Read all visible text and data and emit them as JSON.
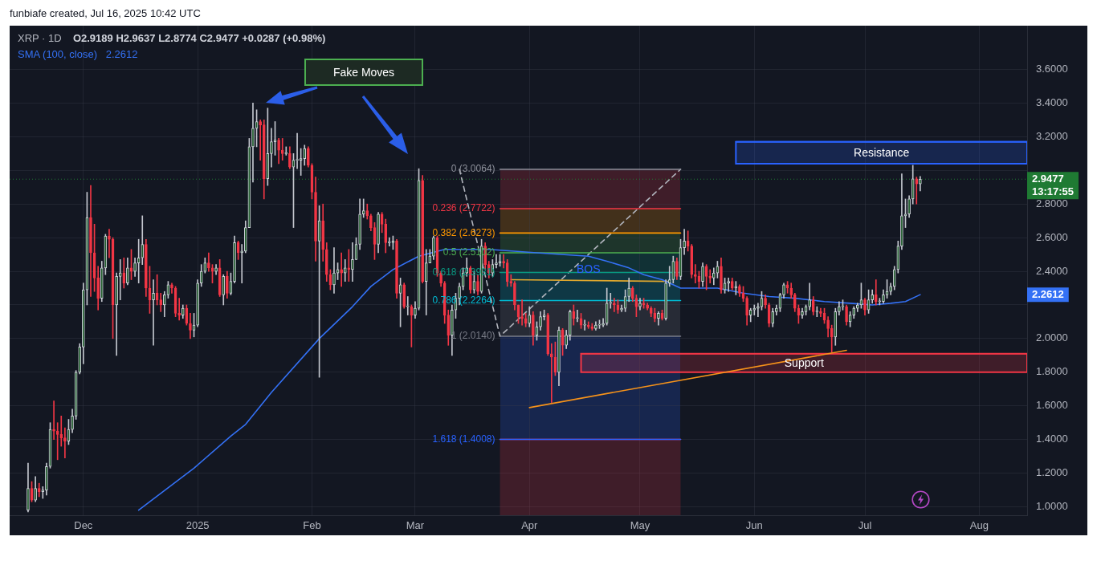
{
  "chart_data": {
    "type": "candlestick",
    "title": "XRP · 1D",
    "subtitle": "O2.9189 H2.9637 L2.8774 C2.9477 +0.0287 (+0.98%)",
    "annotations": [
      "funbiafe created, Jul 16, 2025 10:42 UTC",
      "Fake Moves",
      "13:17:55",
      "2.2612",
      "2.2612",
      {
        "text": "BOS",
        "x": "2025-04-17",
        "y": 2.41
      }
    ],
    "x": [
      "2024-11-16",
      "2024-11-17",
      "2024-11-18",
      "2024-11-19",
      "2024-11-20",
      "2024-11-21",
      "2024-11-22",
      "2024-11-23",
      "2024-11-24",
      "2024-11-25",
      "2024-11-26",
      "2024-11-27",
      "2024-11-28",
      "2024-11-29",
      "2024-11-30",
      "2024-12-01",
      "2024-12-02",
      "2024-12-03",
      "2024-12-04",
      "2024-12-05",
      "2024-12-06",
      "2024-12-07",
      "2024-12-08",
      "2024-12-09",
      "2024-12-10",
      "2024-12-11",
      "2024-12-12",
      "2024-12-13",
      "2024-12-14",
      "2024-12-15",
      "2024-12-16",
      "2024-12-17",
      "2024-12-18",
      "2024-12-19",
      "2024-12-20",
      "2024-12-21",
      "2024-12-22",
      "2024-12-23",
      "2024-12-24",
      "2024-12-25",
      "2024-12-26",
      "2024-12-27",
      "2024-12-28",
      "2024-12-29",
      "2024-12-30",
      "2024-12-31",
      "2025-01-01",
      "2025-01-02",
      "2025-01-03",
      "2025-01-04",
      "2025-01-05",
      "2025-01-06",
      "2025-01-07",
      "2025-01-08",
      "2025-01-09",
      "2025-01-10",
      "2025-01-11",
      "2025-01-12",
      "2025-01-13",
      "2025-01-14",
      "2025-01-15",
      "2025-01-16",
      "2025-01-17",
      "2025-01-18",
      "2025-01-19",
      "2025-01-20",
      "2025-01-21",
      "2025-01-22",
      "2025-01-23",
      "2025-01-24",
      "2025-01-25",
      "2025-01-26",
      "2025-01-27",
      "2025-01-28",
      "2025-01-29",
      "2025-01-30",
      "2025-01-31",
      "2025-02-01",
      "2025-02-02",
      "2025-02-03",
      "2025-02-04",
      "2025-02-05",
      "2025-02-06",
      "2025-02-07",
      "2025-02-08",
      "2025-02-09",
      "2025-02-10",
      "2025-02-11",
      "2025-02-12",
      "2025-02-13",
      "2025-02-14",
      "2025-02-15",
      "2025-02-16",
      "2025-02-17",
      "2025-02-18",
      "2025-02-19",
      "2025-02-20",
      "2025-02-21",
      "2025-02-22",
      "2025-02-23",
      "2025-02-24",
      "2025-02-25",
      "2025-02-26",
      "2025-02-27",
      "2025-02-28",
      "2025-03-01",
      "2025-03-02",
      "2025-03-03",
      "2025-03-04",
      "2025-03-05",
      "2025-03-06",
      "2025-03-07",
      "2025-03-08",
      "2025-03-09",
      "2025-03-10",
      "2025-03-11",
      "2025-03-12",
      "2025-03-13",
      "2025-03-14",
      "2025-03-15",
      "2025-03-16",
      "2025-03-17",
      "2025-03-18",
      "2025-03-19",
      "2025-03-20",
      "2025-03-21",
      "2025-03-22",
      "2025-03-23",
      "2025-03-24",
      "2025-03-25",
      "2025-03-26",
      "2025-03-27",
      "2025-03-28",
      "2025-03-29",
      "2025-03-30",
      "2025-03-31",
      "2025-04-01",
      "2025-04-02",
      "2025-04-03",
      "2025-04-04",
      "2025-04-05",
      "2025-04-06",
      "2025-04-07",
      "2025-04-08",
      "2025-04-09",
      "2025-04-10",
      "2025-04-11",
      "2025-04-12",
      "2025-04-13",
      "2025-04-14",
      "2025-04-15",
      "2025-04-16",
      "2025-04-17",
      "2025-04-18",
      "2025-04-19",
      "2025-04-20",
      "2025-04-21",
      "2025-04-22",
      "2025-04-23",
      "2025-04-24",
      "2025-04-25",
      "2025-04-26",
      "2025-04-27",
      "2025-04-28",
      "2025-04-29",
      "2025-04-30",
      "2025-05-01",
      "2025-05-02",
      "2025-05-03",
      "2025-05-04",
      "2025-05-05",
      "2025-05-06",
      "2025-05-07",
      "2025-05-08",
      "2025-05-09",
      "2025-05-10",
      "2025-05-11",
      "2025-05-12",
      "2025-05-13",
      "2025-05-14",
      "2025-05-15",
      "2025-05-16",
      "2025-05-17",
      "2025-05-18",
      "2025-05-19",
      "2025-05-20",
      "2025-05-21",
      "2025-05-22",
      "2025-05-23",
      "2025-05-24",
      "2025-05-25",
      "2025-05-26",
      "2025-05-27",
      "2025-05-28",
      "2025-05-29",
      "2025-05-30",
      "2025-05-31",
      "2025-06-01",
      "2025-06-02",
      "2025-06-03",
      "2025-06-04",
      "2025-06-05",
      "2025-06-06",
      "2025-06-07",
      "2025-06-08",
      "2025-06-09",
      "2025-06-10",
      "2025-06-11",
      "2025-06-12",
      "2025-06-13",
      "2025-06-14",
      "2025-06-15",
      "2025-06-16",
      "2025-06-17",
      "2025-06-18",
      "2025-06-19",
      "2025-06-20",
      "2025-06-21",
      "2025-06-22",
      "2025-06-23",
      "2025-06-24",
      "2025-06-25",
      "2025-06-26",
      "2025-06-27",
      "2025-06-28",
      "2025-06-29",
      "2025-06-30",
      "2025-07-01",
      "2025-07-02",
      "2025-07-03",
      "2025-07-04",
      "2025-07-05",
      "2025-07-06",
      "2025-07-07",
      "2025-07-08",
      "2025-07-09",
      "2025-07-10",
      "2025-07-11",
      "2025-07-12",
      "2025-07-13",
      "2025-07-14",
      "2025-07-15",
      "2025-07-16"
    ],
    "ohlc": [
      [
        0.98,
        1.26,
        0.97,
        1.11
      ],
      [
        1.11,
        1.15,
        1.03,
        1.04
      ],
      [
        1.04,
        1.18,
        1.03,
        1.11
      ],
      [
        1.11,
        1.14,
        1.06,
        1.09
      ],
      [
        1.09,
        1.12,
        1.05,
        1.1
      ],
      [
        1.1,
        1.26,
        1.07,
        1.24
      ],
      [
        1.24,
        1.5,
        1.23,
        1.46
      ],
      [
        1.46,
        1.63,
        1.4,
        1.45
      ],
      [
        1.45,
        1.5,
        1.28,
        1.43
      ],
      [
        1.43,
        1.54,
        1.36,
        1.41
      ],
      [
        1.41,
        1.47,
        1.29,
        1.39
      ],
      [
        1.39,
        1.52,
        1.37,
        1.46
      ],
      [
        1.46,
        1.58,
        1.44,
        1.54
      ],
      [
        1.54,
        1.81,
        1.52,
        1.8
      ],
      [
        1.8,
        1.97,
        1.79,
        1.95
      ],
      [
        1.95,
        2.33,
        1.85,
        2.29
      ],
      [
        2.29,
        2.87,
        2.2,
        2.72
      ],
      [
        2.72,
        2.91,
        2.25,
        2.51
      ],
      [
        2.51,
        2.68,
        2.28,
        2.36
      ],
      [
        2.36,
        2.43,
        2.17,
        2.24
      ],
      [
        2.24,
        2.46,
        2.22,
        2.42
      ],
      [
        2.42,
        2.62,
        2.38,
        2.61
      ],
      [
        2.61,
        2.65,
        2.48,
        2.59
      ],
      [
        2.59,
        2.6,
        2.0,
        2.2
      ],
      [
        2.2,
        2.39,
        1.9,
        2.37
      ],
      [
        2.37,
        2.47,
        2.23,
        2.39
      ],
      [
        2.39,
        2.48,
        2.3,
        2.33
      ],
      [
        2.33,
        2.48,
        2.32,
        2.42
      ],
      [
        2.42,
        2.53,
        2.35,
        2.4
      ],
      [
        2.4,
        2.48,
        2.37,
        2.45
      ],
      [
        2.45,
        2.59,
        2.33,
        2.48
      ],
      [
        2.48,
        2.73,
        2.44,
        2.56
      ],
      [
        2.56,
        2.59,
        2.25,
        2.3
      ],
      [
        2.3,
        2.43,
        2.15,
        2.23
      ],
      [
        2.23,
        2.35,
        1.96,
        2.27
      ],
      [
        2.27,
        2.38,
        2.2,
        2.23
      ],
      [
        2.23,
        2.27,
        2.16,
        2.2
      ],
      [
        2.2,
        2.28,
        2.13,
        2.26
      ],
      [
        2.26,
        2.34,
        2.24,
        2.32
      ],
      [
        2.32,
        2.33,
        2.27,
        2.3
      ],
      [
        2.3,
        2.31,
        2.13,
        2.15
      ],
      [
        2.15,
        2.24,
        2.11,
        2.14
      ],
      [
        2.14,
        2.2,
        2.12,
        2.18
      ],
      [
        2.18,
        2.2,
        2.08,
        2.09
      ],
      [
        2.09,
        2.15,
        2.0,
        2.05
      ],
      [
        2.05,
        2.15,
        2.01,
        2.08
      ],
      [
        2.08,
        2.35,
        2.07,
        2.33
      ],
      [
        2.33,
        2.44,
        2.31,
        2.4
      ],
      [
        2.4,
        2.48,
        2.39,
        2.45
      ],
      [
        2.45,
        2.51,
        2.4,
        2.42
      ],
      [
        2.42,
        2.44,
        2.33,
        2.4
      ],
      [
        2.4,
        2.44,
        2.38,
        2.42
      ],
      [
        2.42,
        2.47,
        2.25,
        2.26
      ],
      [
        2.26,
        2.38,
        2.2,
        2.37
      ],
      [
        2.37,
        2.4,
        2.24,
        2.27
      ],
      [
        2.27,
        2.39,
        2.26,
        2.34
      ],
      [
        2.34,
        2.61,
        2.33,
        2.57
      ],
      [
        2.57,
        2.58,
        2.47,
        2.51
      ],
      [
        2.51,
        2.56,
        2.33,
        2.52
      ],
      [
        2.52,
        2.7,
        2.51,
        2.66
      ],
      [
        2.66,
        3.19,
        2.66,
        3.14
      ],
      [
        3.14,
        3.4,
        2.93,
        3.25
      ],
      [
        3.25,
        3.36,
        3.14,
        3.29
      ],
      [
        3.29,
        3.3,
        3.06,
        3.27
      ],
      [
        3.27,
        3.3,
        2.83,
        2.95
      ],
      [
        2.95,
        3.37,
        2.91,
        3.1
      ],
      [
        3.1,
        3.25,
        3.02,
        3.17
      ],
      [
        3.17,
        3.29,
        3.09,
        3.18
      ],
      [
        3.18,
        3.19,
        3.04,
        3.12
      ],
      [
        3.12,
        3.19,
        3.06,
        3.1
      ],
      [
        3.1,
        3.14,
        3.09,
        3.1
      ],
      [
        3.1,
        3.14,
        3.01,
        3.02
      ],
      [
        3.02,
        3.1,
        2.66,
        3.06
      ],
      [
        3.06,
        3.22,
        3.01,
        3.06
      ],
      [
        3.06,
        3.13,
        2.97,
        3.07
      ],
      [
        3.07,
        3.15,
        3.03,
        3.13
      ],
      [
        3.13,
        3.14,
        3.02,
        3.03
      ],
      [
        3.03,
        3.04,
        2.83,
        2.87
      ],
      [
        2.87,
        2.96,
        2.46,
        2.58
      ],
      [
        2.58,
        2.79,
        1.77,
        2.7
      ],
      [
        2.7,
        2.8,
        2.46,
        2.53
      ],
      [
        2.53,
        2.57,
        2.34,
        2.38
      ],
      [
        2.38,
        2.41,
        2.29,
        2.32
      ],
      [
        2.32,
        2.54,
        2.27,
        2.39
      ],
      [
        2.39,
        2.45,
        2.35,
        2.41
      ],
      [
        2.41,
        2.51,
        2.31,
        2.39
      ],
      [
        2.39,
        2.47,
        2.34,
        2.42
      ],
      [
        2.42,
        2.53,
        2.34,
        2.41
      ],
      [
        2.41,
        2.57,
        2.34,
        2.47
      ],
      [
        2.47,
        2.6,
        2.47,
        2.56
      ],
      [
        2.56,
        2.83,
        2.53,
        2.74
      ],
      [
        2.74,
        2.83,
        2.72,
        2.76
      ],
      [
        2.76,
        2.8,
        2.71,
        2.73
      ],
      [
        2.73,
        2.74,
        2.64,
        2.66
      ],
      [
        2.66,
        2.69,
        2.47,
        2.56
      ],
      [
        2.56,
        2.75,
        2.51,
        2.74
      ],
      [
        2.74,
        2.75,
        2.63,
        2.68
      ],
      [
        2.68,
        2.71,
        2.51,
        2.57
      ],
      [
        2.57,
        2.6,
        2.55,
        2.57
      ],
      [
        2.57,
        2.61,
        2.53,
        2.58
      ],
      [
        2.58,
        2.59,
        2.24,
        2.27
      ],
      [
        2.27,
        2.36,
        2.07,
        2.32
      ],
      [
        2.32,
        2.33,
        2.18,
        2.19
      ],
      [
        2.19,
        2.25,
        2.14,
        2.19
      ],
      [
        2.19,
        2.2,
        1.95,
        2.14
      ],
      [
        2.14,
        2.22,
        2.12,
        2.18
      ],
      [
        2.18,
        3.01,
        2.17,
        2.94
      ],
      [
        2.94,
        2.97,
        2.33,
        2.34
      ],
      [
        2.34,
        2.53,
        2.14,
        2.45
      ],
      [
        2.45,
        2.53,
        2.45,
        2.49
      ],
      [
        2.49,
        2.61,
        2.47,
        2.6
      ],
      [
        2.6,
        2.61,
        2.37,
        2.39
      ],
      [
        2.39,
        2.4,
        2.31,
        2.33
      ],
      [
        2.33,
        2.34,
        2.09,
        2.14
      ],
      [
        2.14,
        2.17,
        1.96,
        2.02
      ],
      [
        2.02,
        2.2,
        1.9,
        2.17
      ],
      [
        2.17,
        2.27,
        2.12,
        2.24
      ],
      [
        2.24,
        2.33,
        2.2,
        2.31
      ],
      [
        2.31,
        2.42,
        2.29,
        2.39
      ],
      [
        2.39,
        2.48,
        2.37,
        2.42
      ],
      [
        2.42,
        2.43,
        2.27,
        2.29
      ],
      [
        2.29,
        2.4,
        2.27,
        2.34
      ],
      [
        2.34,
        2.38,
        2.26,
        2.28
      ],
      [
        2.28,
        2.59,
        2.27,
        2.55
      ],
      [
        2.55,
        2.57,
        2.41,
        2.44
      ],
      [
        2.44,
        2.46,
        2.36,
        2.39
      ],
      [
        2.39,
        2.47,
        2.37,
        2.44
      ],
      [
        2.44,
        2.5,
        2.42,
        2.45
      ],
      [
        2.45,
        2.5,
        2.43,
        2.46
      ],
      [
        2.46,
        2.5,
        2.42,
        2.45
      ],
      [
        2.45,
        2.47,
        2.31,
        2.34
      ],
      [
        2.34,
        2.38,
        2.31,
        2.33
      ],
      [
        2.33,
        2.34,
        2.17,
        2.2
      ],
      [
        2.2,
        2.2,
        2.09,
        2.13
      ],
      [
        2.13,
        2.23,
        2.08,
        2.12
      ],
      [
        2.12,
        2.15,
        2.07,
        2.09
      ],
      [
        2.09,
        2.19,
        2.07,
        2.14
      ],
      [
        2.14,
        2.16,
        1.96,
        2.02
      ],
      [
        2.02,
        2.1,
        1.99,
        2.07
      ],
      [
        2.07,
        2.16,
        2.05,
        2.13
      ],
      [
        2.13,
        2.17,
        2.11,
        2.14
      ],
      [
        2.14,
        2.15,
        1.9,
        1.91
      ],
      [
        1.91,
        1.97,
        1.62,
        1.89
      ],
      [
        1.89,
        1.98,
        1.78,
        1.8
      ],
      [
        1.8,
        2.07,
        1.72,
        2.05
      ],
      [
        2.05,
        2.06,
        1.9,
        1.96
      ],
      [
        1.96,
        2.05,
        1.94,
        2.02
      ],
      [
        2.02,
        2.17,
        1.99,
        2.16
      ],
      [
        2.16,
        2.2,
        2.08,
        2.12
      ],
      [
        2.12,
        2.17,
        2.1,
        2.12
      ],
      [
        2.12,
        2.15,
        2.06,
        2.08
      ],
      [
        2.08,
        2.11,
        2.05,
        2.08
      ],
      [
        2.08,
        2.1,
        2.06,
        2.07
      ],
      [
        2.07,
        2.09,
        2.05,
        2.06
      ],
      [
        2.06,
        2.1,
        2.05,
        2.08
      ],
      [
        2.08,
        2.11,
        2.06,
        2.08
      ],
      [
        2.08,
        2.12,
        2.07,
        2.09
      ],
      [
        2.09,
        2.3,
        2.08,
        2.21
      ],
      [
        2.21,
        2.27,
        2.18,
        2.21
      ],
      [
        2.21,
        2.24,
        2.16,
        2.2
      ],
      [
        2.2,
        2.23,
        2.15,
        2.17
      ],
      [
        2.17,
        2.2,
        2.16,
        2.18
      ],
      [
        2.18,
        2.29,
        2.16,
        2.25
      ],
      [
        2.25,
        2.36,
        2.22,
        2.3
      ],
      [
        2.3,
        2.31,
        2.22,
        2.24
      ],
      [
        2.24,
        2.26,
        2.13,
        2.19
      ],
      [
        2.19,
        2.24,
        2.17,
        2.21
      ],
      [
        2.21,
        2.24,
        2.18,
        2.2
      ],
      [
        2.2,
        2.21,
        2.17,
        2.18
      ],
      [
        2.18,
        2.19,
        2.13,
        2.15
      ],
      [
        2.15,
        2.18,
        2.1,
        2.12
      ],
      [
        2.12,
        2.16,
        2.08,
        2.15
      ],
      [
        2.15,
        2.17,
        2.11,
        2.12
      ],
      [
        2.12,
        2.35,
        2.11,
        2.33
      ],
      [
        2.33,
        2.43,
        2.31,
        2.35
      ],
      [
        2.35,
        2.49,
        2.33,
        2.46
      ],
      [
        2.46,
        2.48,
        2.35,
        2.37
      ],
      [
        2.37,
        2.59,
        2.35,
        2.54
      ],
      [
        2.54,
        2.65,
        2.5,
        2.58
      ],
      [
        2.58,
        2.64,
        2.52,
        2.55
      ],
      [
        2.55,
        2.56,
        2.36,
        2.38
      ],
      [
        2.38,
        2.44,
        2.33,
        2.37
      ],
      [
        2.37,
        2.4,
        2.3,
        2.34
      ],
      [
        2.34,
        2.45,
        2.31,
        2.43
      ],
      [
        2.43,
        2.44,
        2.29,
        2.37
      ],
      [
        2.37,
        2.41,
        2.33,
        2.36
      ],
      [
        2.36,
        2.42,
        2.32,
        2.39
      ],
      [
        2.39,
        2.46,
        2.36,
        2.43
      ],
      [
        2.43,
        2.48,
        2.27,
        2.29
      ],
      [
        2.29,
        2.36,
        2.27,
        2.33
      ],
      [
        2.33,
        2.36,
        2.28,
        2.34
      ],
      [
        2.34,
        2.36,
        2.29,
        2.3
      ],
      [
        2.3,
        2.34,
        2.26,
        2.31
      ],
      [
        2.31,
        2.32,
        2.25,
        2.27
      ],
      [
        2.27,
        2.31,
        2.22,
        2.24
      ],
      [
        2.24,
        2.25,
        2.08,
        2.14
      ],
      [
        2.14,
        2.18,
        2.1,
        2.17
      ],
      [
        2.17,
        2.2,
        2.14,
        2.18
      ],
      [
        2.18,
        2.21,
        2.13,
        2.19
      ],
      [
        2.19,
        2.28,
        2.17,
        2.24
      ],
      [
        2.24,
        2.26,
        2.18,
        2.2
      ],
      [
        2.2,
        2.21,
        2.07,
        2.09
      ],
      [
        2.09,
        2.18,
        2.07,
        2.16
      ],
      [
        2.16,
        2.2,
        2.14,
        2.18
      ],
      [
        2.18,
        2.27,
        2.16,
        2.26
      ],
      [
        2.26,
        2.33,
        2.24,
        2.32
      ],
      [
        2.32,
        2.34,
        2.27,
        2.3
      ],
      [
        2.3,
        2.33,
        2.24,
        2.26
      ],
      [
        2.26,
        2.27,
        2.16,
        2.18
      ],
      [
        2.18,
        2.2,
        2.09,
        2.14
      ],
      [
        2.14,
        2.18,
        2.12,
        2.16
      ],
      [
        2.16,
        2.2,
        2.14,
        2.19
      ],
      [
        2.19,
        2.33,
        2.17,
        2.23
      ],
      [
        2.23,
        2.25,
        2.14,
        2.16
      ],
      [
        2.16,
        2.19,
        2.13,
        2.16
      ],
      [
        2.16,
        2.18,
        2.13,
        2.15
      ],
      [
        2.15,
        2.18,
        2.09,
        2.11
      ],
      [
        2.11,
        2.13,
        2.01,
        2.06
      ],
      [
        2.06,
        2.08,
        1.92,
        2.01
      ],
      [
        2.01,
        2.18,
        1.96,
        2.16
      ],
      [
        2.16,
        2.22,
        2.14,
        2.19
      ],
      [
        2.19,
        2.23,
        2.17,
        2.19
      ],
      [
        2.19,
        2.2,
        2.08,
        2.1
      ],
      [
        2.1,
        2.16,
        2.07,
        2.14
      ],
      [
        2.14,
        2.19,
        2.12,
        2.18
      ],
      [
        2.18,
        2.21,
        2.16,
        2.2
      ],
      [
        2.2,
        2.33,
        2.18,
        2.23
      ],
      [
        2.23,
        2.24,
        2.14,
        2.17
      ],
      [
        2.17,
        2.29,
        2.15,
        2.23
      ],
      [
        2.23,
        2.29,
        2.21,
        2.26
      ],
      [
        2.26,
        2.35,
        2.2,
        2.22
      ],
      [
        2.22,
        2.24,
        2.2,
        2.22
      ],
      [
        2.22,
        2.29,
        2.21,
        2.26
      ],
      [
        2.26,
        2.35,
        2.24,
        2.28
      ],
      [
        2.28,
        2.33,
        2.26,
        2.31
      ],
      [
        2.31,
        2.43,
        2.29,
        2.41
      ],
      [
        2.41,
        2.58,
        2.39,
        2.55
      ],
      [
        2.55,
        2.98,
        2.53,
        2.73
      ],
      [
        2.73,
        2.83,
        2.66,
        2.74
      ],
      [
        2.74,
        2.85,
        2.72,
        2.83
      ],
      [
        2.83,
        3.03,
        2.8,
        2.95
      ],
      [
        2.95,
        2.96,
        2.8,
        2.9189
      ],
      [
        2.9189,
        2.9637,
        2.8774,
        2.9477
      ]
    ],
    "xlim": [
      "2024-11-11",
      "2025-08-14"
    ],
    "xticks": [
      {
        "value": "2024-12-01",
        "label": "Dec"
      },
      {
        "value": "2025-01-01",
        "label": "2025"
      },
      {
        "value": "2025-02-01",
        "label": "Feb"
      },
      {
        "value": "2025-03-01",
        "label": "Mar"
      },
      {
        "value": "2025-04-01",
        "label": "Apr"
      },
      {
        "value": "2025-05-01",
        "label": "May"
      },
      {
        "value": "2025-06-01",
        "label": "Jun"
      },
      {
        "value": "2025-07-01",
        "label": "Jul"
      },
      {
        "value": "2025-08-01",
        "label": "Aug"
      }
    ],
    "ylim": [
      0.95,
      3.86
    ],
    "yticks": [
      {
        "value": 1,
        "label": "1.0000"
      },
      {
        "value": 1.2,
        "label": "1.2000"
      },
      {
        "value": 1.4,
        "label": "1.4000"
      },
      {
        "value": 1.6,
        "label": "1.6000"
      },
      {
        "value": 1.8,
        "label": "1.8000"
      },
      {
        "value": 2,
        "label": "2.0000"
      },
      {
        "value": 2.2,
        "label": null
      },
      {
        "value": 2.4,
        "label": "2.4000"
      },
      {
        "value": 2.6,
        "label": "2.6000"
      },
      {
        "value": 2.8,
        "label": "2.8000"
      },
      {
        "value": 3,
        "label": null
      },
      {
        "value": 3.2,
        "label": "3.2000"
      },
      {
        "value": 3.4,
        "label": "3.4000"
      },
      {
        "value": 3.6,
        "label": "3.6000"
      }
    ],
    "grid": true,
    "legend": "top left",
    "ref_lines": [
      {
        "axis": "y",
        "value": 2.9477,
        "label": "2.9477",
        "color": "#1f7a33",
        "line_style": "dotted"
      }
    ],
    "series": [
      {
        "type": "line",
        "name": "SMA (100, close)",
        "color": "#3471f5",
        "x": [
          "2024-12-16",
          "2024-12-31",
          "2025-01-10",
          "2025-01-14",
          "2025-01-21",
          "2025-02-03",
          "2025-02-12",
          "2025-02-17",
          "2025-02-23",
          "2025-03-02",
          "2025-03-09",
          "2025-03-21",
          "2025-04-03",
          "2025-04-17",
          "2025-04-22",
          "2025-04-28",
          "2025-05-02",
          "2025-05-07",
          "2025-05-12",
          "2025-05-22",
          "2025-05-29",
          "2025-06-05",
          "2025-06-12",
          "2025-06-20",
          "2025-06-27",
          "2025-07-03",
          "2025-07-08",
          "2025-07-12",
          "2025-07-16"
        ],
        "values": [
          0.98,
          1.23,
          1.42,
          1.49,
          1.68,
          2.0,
          2.19,
          2.31,
          2.41,
          2.49,
          2.53,
          2.53,
          2.51,
          2.49,
          2.46,
          2.42,
          2.38,
          2.35,
          2.3,
          2.3,
          2.27,
          2.25,
          2.24,
          2.22,
          2.21,
          2.2,
          2.21,
          2.22,
          2.2612
        ]
      },
      {
        "type": "line",
        "name": "0 (3.0064)",
        "color": "#8c8f99",
        "x": [
          "2025-03-24",
          "2025-05-12"
        ],
        "values": [
          3.0064,
          3.0064
        ]
      },
      {
        "type": "line",
        "name": "0.236 (2.7722)",
        "color": "#f23645",
        "x": [
          "2025-03-24",
          "2025-05-12"
        ],
        "values": [
          2.7722,
          2.7722
        ]
      },
      {
        "type": "line",
        "name": "0.382 (2.6273)",
        "color": "#ff9800",
        "x": [
          "2025-03-24",
          "2025-05-12"
        ],
        "values": [
          2.6273,
          2.6273
        ]
      },
      {
        "type": "line",
        "name": "0.5 (2.5102)",
        "color": "#4caf50",
        "x": [
          "2025-03-24",
          "2025-05-12"
        ],
        "values": [
          2.5102,
          2.5102
        ]
      },
      {
        "type": "line",
        "name": "0.618 (2.3931)",
        "color": "#089981",
        "x": [
          "2025-03-24",
          "2025-05-12"
        ],
        "values": [
          2.3931,
          2.3931
        ]
      },
      {
        "type": "line",
        "name": "0.786 (2.2264)",
        "color": "#00bcd4",
        "x": [
          "2025-03-24",
          "2025-05-12"
        ],
        "values": [
          2.2264,
          2.2264
        ]
      },
      {
        "type": "line",
        "name": "1 (2.0140)",
        "color": "#7a7d88",
        "x": [
          "2025-03-24",
          "2025-05-12"
        ],
        "values": [
          2.014,
          2.014
        ]
      },
      {
        "type": "line",
        "name": "1.618 (1.4008)",
        "color": "#2962ff",
        "x": [
          "2025-03-24",
          "2025-05-12"
        ],
        "values": [
          1.4008,
          1.4008
        ]
      },
      {
        "type": "area",
        "color": "#f23645",
        "x": [
          "2025-03-24",
          "2025-05-12"
        ],
        "values": [
          1.4008,
          1.4008
        ]
      },
      {
        "type": "line",
        "color": "#e0a82e",
        "x": [
          "2025-03-27",
          "2025-05-08T12:00"
        ],
        "values": [
          2.35,
          2.34
        ]
      },
      {
        "type": "line",
        "color": "#f7931a",
        "x": [
          "2025-04-01",
          "2025-06-26"
        ],
        "values": [
          1.59,
          1.93
        ]
      },
      {
        "type": "line",
        "color": "#b2b5be",
        "line_style": "dashed",
        "x": [
          "2025-03-13",
          "2025-03-24",
          "2025-05-12"
        ],
        "values": [
          3.0064,
          2.014,
          3.0064
        ]
      },
      {
        "type": "line",
        "name": "Resistance",
        "color": "#2962ff",
        "x": [
          "2025-05-27",
          "2025-08-14"
        ],
        "values": [
          3.17,
          3.17
        ],
        "lower": [
          3.04,
          3.04
        ],
        "upper": [
          3.17,
          3.17
        ]
      },
      {
        "type": "line",
        "name": "Support",
        "color": "#f23645",
        "x": [
          "2025-04-15",
          "2025-08-14"
        ],
        "values": [
          1.91,
          1.91
        ],
        "lower": [
          1.8,
          1.8
        ],
        "upper": [
          1.91,
          1.91
        ]
      }
    ]
  }
}
